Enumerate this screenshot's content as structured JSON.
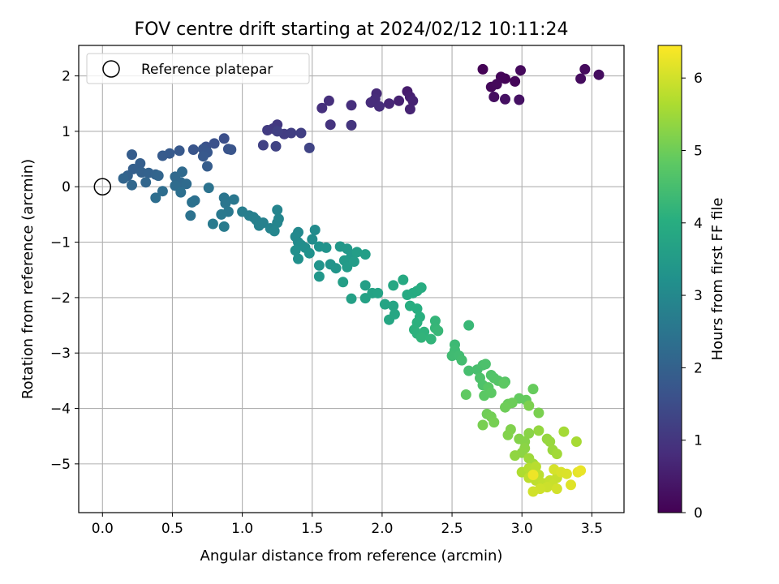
{
  "chart_data": {
    "type": "scatter",
    "title": "FOV centre drift starting at 2024/02/12 10:11:24",
    "xlabel": "Angular distance from reference (arcmin)",
    "ylabel": "Rotation from reference (arcmin)",
    "xlim": [
      -0.17,
      3.73
    ],
    "ylim": [
      -5.88,
      2.55
    ],
    "xticks": [
      0.0,
      0.5,
      1.0,
      1.5,
      2.0,
      2.5,
      3.0,
      3.5
    ],
    "xtick_labels": [
      "0.0",
      "0.5",
      "1.0",
      "1.5",
      "2.0",
      "2.5",
      "3.0",
      "3.5"
    ],
    "yticks": [
      2,
      1,
      0,
      -1,
      -2,
      -3,
      -4,
      -5
    ],
    "ytick_labels": [
      "2",
      "1",
      "0",
      "−1",
      "−2",
      "−3",
      "−4",
      "−5"
    ],
    "grid": true,
    "legend": {
      "position": "top-left",
      "entries": [
        "Reference platepar"
      ]
    },
    "reference_point": {
      "x": 0.0,
      "y": 0.0
    },
    "colorbar": {
      "label": "Hours from first FF file",
      "min": 0,
      "max": 6.45,
      "ticks": [
        0,
        1,
        2,
        3,
        4,
        5,
        6
      ],
      "tick_labels": [
        "0",
        "1",
        "2",
        "3",
        "4",
        "5",
        "6"
      ],
      "colormap": "viridis"
    },
    "points": [
      {
        "x": 2.72,
        "y": 2.12,
        "t": 0.03
      },
      {
        "x": 2.88,
        "y": 1.95,
        "t": 0.05
      },
      {
        "x": 2.85,
        "y": 1.98,
        "t": 0.08
      },
      {
        "x": 2.95,
        "y": 1.9,
        "t": 0.1
      },
      {
        "x": 2.78,
        "y": 1.8,
        "t": 0.12
      },
      {
        "x": 2.82,
        "y": 1.85,
        "t": 0.14
      },
      {
        "x": 2.99,
        "y": 2.1,
        "t": 0.16
      },
      {
        "x": 3.45,
        "y": 2.12,
        "t": 0.18
      },
      {
        "x": 3.42,
        "y": 1.95,
        "t": 0.2
      },
      {
        "x": 3.55,
        "y": 2.02,
        "t": 0.22
      },
      {
        "x": 2.8,
        "y": 1.62,
        "t": 0.25
      },
      {
        "x": 2.88,
        "y": 1.58,
        "t": 0.28
      },
      {
        "x": 2.98,
        "y": 1.57,
        "t": 0.3
      },
      {
        "x": 2.18,
        "y": 1.72,
        "t": 0.5
      },
      {
        "x": 2.2,
        "y": 1.62,
        "t": 0.55
      },
      {
        "x": 2.12,
        "y": 1.55,
        "t": 0.6
      },
      {
        "x": 2.22,
        "y": 1.55,
        "t": 0.62
      },
      {
        "x": 2.2,
        "y": 1.4,
        "t": 0.65
      },
      {
        "x": 2.05,
        "y": 1.5,
        "t": 0.7
      },
      {
        "x": 1.96,
        "y": 1.68,
        "t": 0.75
      },
      {
        "x": 1.95,
        "y": 1.58,
        "t": 0.78
      },
      {
        "x": 1.92,
        "y": 1.52,
        "t": 0.8
      },
      {
        "x": 1.98,
        "y": 1.45,
        "t": 0.82
      },
      {
        "x": 1.78,
        "y": 1.47,
        "t": 0.85
      },
      {
        "x": 1.62,
        "y": 1.55,
        "t": 0.88
      },
      {
        "x": 1.57,
        "y": 1.42,
        "t": 0.9
      },
      {
        "x": 1.63,
        "y": 1.12,
        "t": 0.95
      },
      {
        "x": 1.78,
        "y": 1.11,
        "t": 0.98
      },
      {
        "x": 1.25,
        "y": 1.12,
        "t": 1.05
      },
      {
        "x": 1.22,
        "y": 1.05,
        "t": 1.1
      },
      {
        "x": 1.18,
        "y": 1.02,
        "t": 1.12
      },
      {
        "x": 1.3,
        "y": 0.95,
        "t": 1.15
      },
      {
        "x": 1.35,
        "y": 0.97,
        "t": 1.18
      },
      {
        "x": 1.42,
        "y": 0.97,
        "t": 1.2
      },
      {
        "x": 1.25,
        "y": 1.0,
        "t": 1.22
      },
      {
        "x": 1.15,
        "y": 0.75,
        "t": 1.25
      },
      {
        "x": 1.24,
        "y": 0.73,
        "t": 1.28
      },
      {
        "x": 1.48,
        "y": 0.7,
        "t": 1.3
      },
      {
        "x": 0.87,
        "y": 0.87,
        "t": 1.55
      },
      {
        "x": 0.8,
        "y": 0.78,
        "t": 1.6
      },
      {
        "x": 0.74,
        "y": 0.72,
        "t": 1.62
      },
      {
        "x": 0.9,
        "y": 0.68,
        "t": 1.65
      },
      {
        "x": 0.92,
        "y": 0.67,
        "t": 1.68
      },
      {
        "x": 0.65,
        "y": 0.67,
        "t": 1.7
      },
      {
        "x": 0.72,
        "y": 0.68,
        "t": 1.72
      },
      {
        "x": 0.75,
        "y": 0.62,
        "t": 1.75
      },
      {
        "x": 0.72,
        "y": 0.55,
        "t": 1.78
      },
      {
        "x": 0.55,
        "y": 0.65,
        "t": 1.8
      },
      {
        "x": 0.48,
        "y": 0.6,
        "t": 1.82
      },
      {
        "x": 0.43,
        "y": 0.56,
        "t": 1.85
      },
      {
        "x": 0.75,
        "y": 0.37,
        "t": 1.88
      },
      {
        "x": 0.21,
        "y": 0.58,
        "t": 1.9
      },
      {
        "x": 0.27,
        "y": 0.42,
        "t": 1.92
      },
      {
        "x": 0.22,
        "y": 0.32,
        "t": 1.95
      },
      {
        "x": 0.28,
        "y": 0.26,
        "t": 1.98
      },
      {
        "x": 0.18,
        "y": 0.2,
        "t": 2.0
      },
      {
        "x": 0.33,
        "y": 0.25,
        "t": 2.02
      },
      {
        "x": 0.38,
        "y": 0.22,
        "t": 2.05
      },
      {
        "x": 0.4,
        "y": 0.2,
        "t": 2.08
      },
      {
        "x": 0.15,
        "y": 0.15,
        "t": 2.1
      },
      {
        "x": 0.31,
        "y": 0.08,
        "t": 2.12
      },
      {
        "x": 0.21,
        "y": 0.03,
        "t": 2.15
      },
      {
        "x": 0.52,
        "y": 0.18,
        "t": 2.18
      },
      {
        "x": 0.56,
        "y": 0.08,
        "t": 2.2
      },
      {
        "x": 0.57,
        "y": 0.27,
        "t": 2.22
      },
      {
        "x": 0.6,
        "y": 0.05,
        "t": 2.25
      },
      {
        "x": 0.52,
        "y": 0.02,
        "t": 2.28
      },
      {
        "x": 0.43,
        "y": -0.08,
        "t": 2.3
      },
      {
        "x": 0.38,
        "y": -0.2,
        "t": 2.32
      },
      {
        "x": 0.56,
        "y": -0.1,
        "t": 2.35
      },
      {
        "x": 0.66,
        "y": -0.25,
        "t": 2.38
      },
      {
        "x": 0.64,
        "y": -0.28,
        "t": 2.4
      },
      {
        "x": 0.63,
        "y": -0.52,
        "t": 2.42
      },
      {
        "x": 0.76,
        "y": -0.02,
        "t": 2.45
      },
      {
        "x": 0.87,
        "y": -0.2,
        "t": 2.5
      },
      {
        "x": 0.88,
        "y": -0.3,
        "t": 2.52
      },
      {
        "x": 0.94,
        "y": -0.23,
        "t": 2.55
      },
      {
        "x": 0.9,
        "y": -0.45,
        "t": 2.58
      },
      {
        "x": 0.85,
        "y": -0.5,
        "t": 2.6
      },
      {
        "x": 0.79,
        "y": -0.67,
        "t": 2.62
      },
      {
        "x": 0.87,
        "y": -0.72,
        "t": 2.65
      },
      {
        "x": 1.0,
        "y": -0.45,
        "t": 2.7
      },
      {
        "x": 1.05,
        "y": -0.52,
        "t": 2.72
      },
      {
        "x": 1.08,
        "y": -0.55,
        "t": 2.75
      },
      {
        "x": 1.1,
        "y": -0.6,
        "t": 2.78
      },
      {
        "x": 1.12,
        "y": -0.7,
        "t": 2.8
      },
      {
        "x": 1.15,
        "y": -0.65,
        "t": 2.82
      },
      {
        "x": 1.2,
        "y": -0.75,
        "t": 2.85
      },
      {
        "x": 1.25,
        "y": -0.42,
        "t": 2.88
      },
      {
        "x": 1.26,
        "y": -0.58,
        "t": 2.9
      },
      {
        "x": 1.25,
        "y": -0.65,
        "t": 2.92
      },
      {
        "x": 1.23,
        "y": -0.8,
        "t": 2.95
      },
      {
        "x": 1.4,
        "y": -0.82,
        "t": 3.0
      },
      {
        "x": 1.38,
        "y": -0.9,
        "t": 3.02
      },
      {
        "x": 1.4,
        "y": -1.0,
        "t": 3.05
      },
      {
        "x": 1.52,
        "y": -0.78,
        "t": 3.08
      },
      {
        "x": 1.5,
        "y": -0.95,
        "t": 3.1
      },
      {
        "x": 1.42,
        "y": -1.05,
        "t": 3.12
      },
      {
        "x": 1.45,
        "y": -1.1,
        "t": 3.15
      },
      {
        "x": 1.38,
        "y": -1.15,
        "t": 3.18
      },
      {
        "x": 1.4,
        "y": -1.3,
        "t": 3.2
      },
      {
        "x": 1.48,
        "y": -1.2,
        "t": 3.22
      },
      {
        "x": 1.55,
        "y": -1.08,
        "t": 3.25
      },
      {
        "x": 1.6,
        "y": -1.1,
        "t": 3.28
      },
      {
        "x": 1.55,
        "y": -1.42,
        "t": 3.3
      },
      {
        "x": 1.63,
        "y": -1.4,
        "t": 3.32
      },
      {
        "x": 1.67,
        "y": -1.47,
        "t": 3.35
      },
      {
        "x": 1.55,
        "y": -1.62,
        "t": 3.38
      },
      {
        "x": 1.7,
        "y": -1.08,
        "t": 3.4
      },
      {
        "x": 1.75,
        "y": -1.12,
        "t": 3.42
      },
      {
        "x": 1.78,
        "y": -1.25,
        "t": 3.45
      },
      {
        "x": 1.73,
        "y": -1.33,
        "t": 3.48
      },
      {
        "x": 1.75,
        "y": -1.45,
        "t": 3.5
      },
      {
        "x": 1.8,
        "y": -1.35,
        "t": 3.52
      },
      {
        "x": 1.82,
        "y": -1.18,
        "t": 3.55
      },
      {
        "x": 1.88,
        "y": -1.22,
        "t": 3.58
      },
      {
        "x": 1.72,
        "y": -1.72,
        "t": 3.6
      },
      {
        "x": 1.88,
        "y": -1.78,
        "t": 3.62
      },
      {
        "x": 1.78,
        "y": -2.02,
        "t": 3.65
      },
      {
        "x": 1.88,
        "y": -2.01,
        "t": 3.68
      },
      {
        "x": 1.93,
        "y": -1.92,
        "t": 3.7
      },
      {
        "x": 1.97,
        "y": -1.92,
        "t": 3.72
      },
      {
        "x": 2.02,
        "y": -2.12,
        "t": 3.75
      },
      {
        "x": 2.08,
        "y": -2.15,
        "t": 3.78
      },
      {
        "x": 2.05,
        "y": -2.4,
        "t": 3.8
      },
      {
        "x": 2.09,
        "y": -2.3,
        "t": 3.82
      },
      {
        "x": 2.08,
        "y": -1.78,
        "t": 3.85
      },
      {
        "x": 2.15,
        "y": -1.68,
        "t": 3.88
      },
      {
        "x": 2.18,
        "y": -1.95,
        "t": 3.9
      },
      {
        "x": 2.22,
        "y": -1.92,
        "t": 3.92
      },
      {
        "x": 2.25,
        "y": -1.88,
        "t": 3.95
      },
      {
        "x": 2.28,
        "y": -1.82,
        "t": 3.98
      },
      {
        "x": 2.2,
        "y": -2.15,
        "t": 4.0
      },
      {
        "x": 2.25,
        "y": -2.2,
        "t": 4.02
      },
      {
        "x": 2.27,
        "y": -2.35,
        "t": 4.05
      },
      {
        "x": 2.25,
        "y": -2.45,
        "t": 4.08
      },
      {
        "x": 2.23,
        "y": -2.58,
        "t": 4.1
      },
      {
        "x": 2.25,
        "y": -2.65,
        "t": 4.12
      },
      {
        "x": 2.3,
        "y": -2.62,
        "t": 4.15
      },
      {
        "x": 2.28,
        "y": -2.72,
        "t": 4.18
      },
      {
        "x": 2.35,
        "y": -2.75,
        "t": 4.2
      },
      {
        "x": 2.38,
        "y": -2.42,
        "t": 4.22
      },
      {
        "x": 2.38,
        "y": -2.55,
        "t": 4.25
      },
      {
        "x": 2.4,
        "y": -2.6,
        "t": 4.28
      },
      {
        "x": 2.62,
        "y": -2.5,
        "t": 4.3
      },
      {
        "x": 2.52,
        "y": -2.85,
        "t": 4.35
      },
      {
        "x": 2.52,
        "y": -2.95,
        "t": 4.38
      },
      {
        "x": 2.5,
        "y": -3.05,
        "t": 4.4
      },
      {
        "x": 2.55,
        "y": -3.05,
        "t": 4.42
      },
      {
        "x": 2.57,
        "y": -3.13,
        "t": 4.45
      },
      {
        "x": 2.62,
        "y": -3.32,
        "t": 4.5
      },
      {
        "x": 2.68,
        "y": -3.3,
        "t": 4.52
      },
      {
        "x": 2.72,
        "y": -3.22,
        "t": 4.55
      },
      {
        "x": 2.74,
        "y": -3.2,
        "t": 4.58
      },
      {
        "x": 2.7,
        "y": -3.45,
        "t": 4.6
      },
      {
        "x": 2.72,
        "y": -3.58,
        "t": 4.62
      },
      {
        "x": 2.78,
        "y": -3.4,
        "t": 4.65
      },
      {
        "x": 2.8,
        "y": -3.45,
        "t": 4.68
      },
      {
        "x": 2.83,
        "y": -3.5,
        "t": 4.7
      },
      {
        "x": 2.88,
        "y": -3.52,
        "t": 4.72
      },
      {
        "x": 2.76,
        "y": -3.62,
        "t": 4.75
      },
      {
        "x": 2.73,
        "y": -3.77,
        "t": 4.78
      },
      {
        "x": 2.78,
        "y": -3.72,
        "t": 4.8
      },
      {
        "x": 2.87,
        "y": -3.55,
        "t": 4.82
      },
      {
        "x": 2.6,
        "y": -3.75,
        "t": 4.85
      },
      {
        "x": 2.98,
        "y": -3.82,
        "t": 4.88
      },
      {
        "x": 3.03,
        "y": -3.85,
        "t": 4.9
      },
      {
        "x": 3.08,
        "y": -3.65,
        "t": 4.92
      },
      {
        "x": 2.9,
        "y": -3.92,
        "t": 4.95
      },
      {
        "x": 2.93,
        "y": -3.9,
        "t": 4.98
      },
      {
        "x": 2.88,
        "y": -3.98,
        "t": 5.0
      },
      {
        "x": 2.75,
        "y": -4.1,
        "t": 5.02
      },
      {
        "x": 2.78,
        "y": -4.15,
        "t": 5.05
      },
      {
        "x": 2.8,
        "y": -4.25,
        "t": 5.08
      },
      {
        "x": 2.72,
        "y": -4.3,
        "t": 5.1
      },
      {
        "x": 3.12,
        "y": -4.08,
        "t": 5.12
      },
      {
        "x": 3.05,
        "y": -3.95,
        "t": 5.15
      },
      {
        "x": 2.92,
        "y": -4.38,
        "t": 5.18
      },
      {
        "x": 2.9,
        "y": -4.48,
        "t": 5.2
      },
      {
        "x": 2.98,
        "y": -4.55,
        "t": 5.22
      },
      {
        "x": 3.02,
        "y": -4.6,
        "t": 5.25
      },
      {
        "x": 3.05,
        "y": -4.45,
        "t": 5.28
      },
      {
        "x": 3.02,
        "y": -4.72,
        "t": 5.3
      },
      {
        "x": 3.0,
        "y": -4.8,
        "t": 5.32
      },
      {
        "x": 2.95,
        "y": -4.85,
        "t": 5.35
      },
      {
        "x": 3.12,
        "y": -4.4,
        "t": 5.38
      },
      {
        "x": 3.18,
        "y": -4.55,
        "t": 5.4
      },
      {
        "x": 3.2,
        "y": -4.6,
        "t": 5.42
      },
      {
        "x": 3.22,
        "y": -4.75,
        "t": 5.45
      },
      {
        "x": 3.05,
        "y": -4.9,
        "t": 5.48
      },
      {
        "x": 3.08,
        "y": -5.0,
        "t": 5.5
      },
      {
        "x": 3.25,
        "y": -4.82,
        "t": 5.52
      },
      {
        "x": 3.3,
        "y": -4.42,
        "t": 5.55
      },
      {
        "x": 3.39,
        "y": -4.6,
        "t": 5.58
      },
      {
        "x": 3.0,
        "y": -5.15,
        "t": 5.65
      },
      {
        "x": 3.05,
        "y": -5.08,
        "t": 5.7
      },
      {
        "x": 3.08,
        "y": -5.12,
        "t": 5.72
      },
      {
        "x": 3.1,
        "y": -5.05,
        "t": 5.75
      },
      {
        "x": 3.12,
        "y": -5.2,
        "t": 5.78
      },
      {
        "x": 3.05,
        "y": -5.25,
        "t": 5.8
      },
      {
        "x": 3.1,
        "y": -5.3,
        "t": 5.82
      },
      {
        "x": 3.15,
        "y": -5.35,
        "t": 5.85
      },
      {
        "x": 3.2,
        "y": -5.3,
        "t": 5.88
      },
      {
        "x": 3.25,
        "y": -5.25,
        "t": 5.9
      },
      {
        "x": 3.22,
        "y": -5.38,
        "t": 5.92
      },
      {
        "x": 3.18,
        "y": -5.42,
        "t": 5.95
      },
      {
        "x": 3.13,
        "y": -5.45,
        "t": 5.98
      },
      {
        "x": 3.08,
        "y": -5.5,
        "t": 6.0
      },
      {
        "x": 3.25,
        "y": -5.45,
        "t": 6.02
      },
      {
        "x": 3.23,
        "y": -5.1,
        "t": 6.05
      },
      {
        "x": 3.28,
        "y": -5.15,
        "t": 6.08
      },
      {
        "x": 3.32,
        "y": -5.18,
        "t": 6.1
      },
      {
        "x": 3.35,
        "y": -5.38,
        "t": 6.15
      },
      {
        "x": 3.4,
        "y": -5.15,
        "t": 6.2
      },
      {
        "x": 3.42,
        "y": -5.12,
        "t": 6.25
      },
      {
        "x": 3.08,
        "y": -5.2,
        "t": 6.3
      }
    ]
  }
}
